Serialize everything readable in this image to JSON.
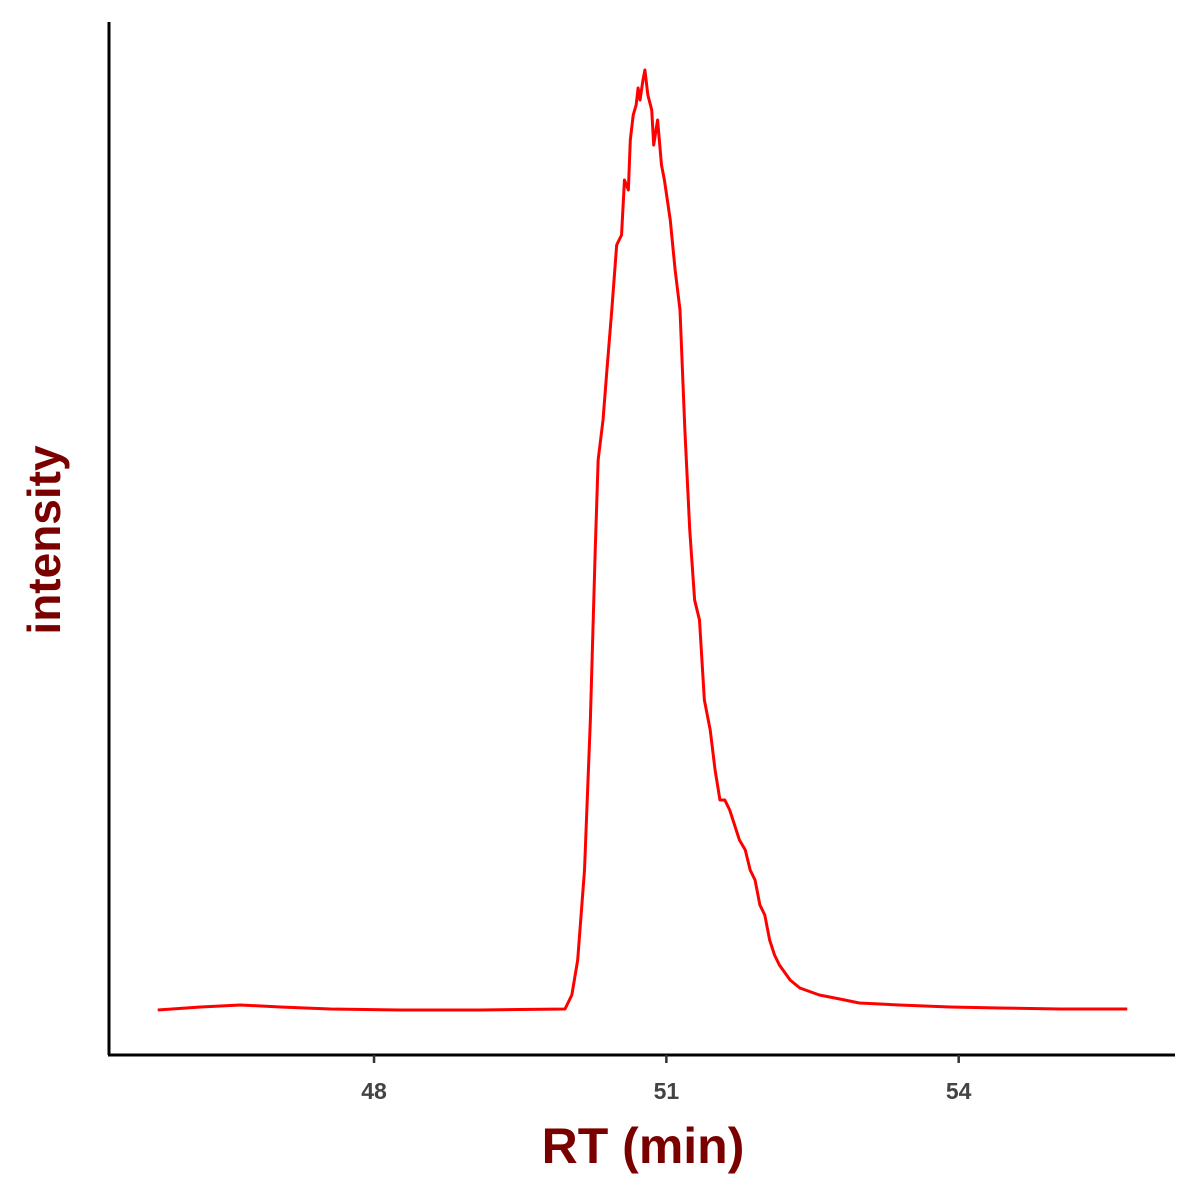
{
  "chart_data": {
    "type": "line",
    "x_label": "RT (min)",
    "y_label": "intensity",
    "x": [
      45.78,
      46.22,
      46.63,
      47.04,
      47.55,
      48.27,
      49.09,
      49.96,
      50.03,
      50.09,
      50.16,
      50.22,
      50.27,
      50.3,
      50.35,
      50.39,
      50.44,
      50.49,
      50.54,
      50.57,
      50.61,
      50.63,
      50.66,
      50.69,
      50.71,
      50.73,
      50.76,
      50.78,
      50.81,
      50.85,
      50.87,
      50.91,
      50.95,
      50.98,
      51.04,
      51.09,
      51.14,
      51.19,
      51.24,
      51.29,
      51.34,
      51.39,
      51.45,
      51.5,
      51.55,
      51.6,
      51.65,
      51.7,
      51.75,
      51.81,
      51.86,
      51.91,
      51.96,
      52.01,
      52.06,
      52.11,
      52.16,
      52.27,
      52.37,
      52.57,
      52.78,
      52.98,
      53.39,
      53.91,
      54.42,
      55.04,
      55.73
    ],
    "series": [
      {
        "color": "#ff0000",
        "values": [
          4.5,
          4.8,
          5.0,
          4.8,
          4.6,
          4.5,
          4.5,
          4.6,
          6.0,
          9.5,
          18.5,
          33.5,
          50.5,
          59.5,
          63.5,
          68.5,
          74.5,
          81.0,
          82.0,
          87.5,
          86.5,
          91.5,
          94.0,
          95.0,
          96.7,
          95.5,
          97.5,
          98.5,
          96.0,
          94.5,
          91.0,
          93.5,
          89.0,
          87.5,
          83.5,
          78.5,
          74.5,
          62.5,
          52.5,
          45.5,
          43.5,
          35.5,
          32.5,
          28.5,
          25.5,
          25.5,
          24.5,
          23.0,
          21.5,
          20.5,
          18.5,
          17.5,
          15.0,
          14.0,
          11.5,
          10.0,
          9.0,
          7.5,
          6.7,
          6.0,
          5.6,
          5.2,
          5.0,
          4.8,
          4.7,
          4.6,
          4.6
        ]
      }
    ],
    "xlim": [
      45.28,
      56.22
    ],
    "xticks": [
      48,
      51,
      54
    ],
    "ylim": [
      0,
      103.3
    ]
  }
}
